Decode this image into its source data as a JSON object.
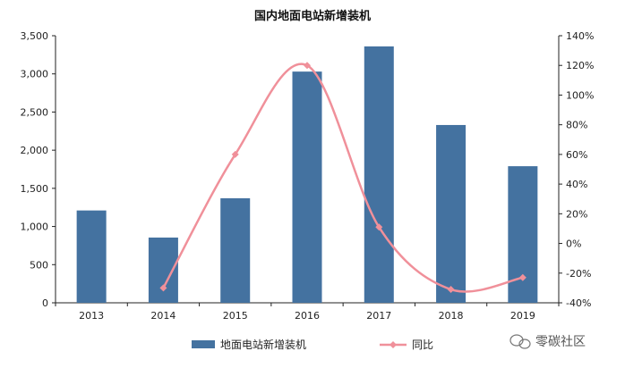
{
  "chart_data": {
    "type": "bar",
    "title": "国内地面电站新增装机",
    "categories": [
      "2013",
      "2014",
      "2015",
      "2016",
      "2017",
      "2018",
      "2019"
    ],
    "series": [
      {
        "name": "地面电站新增装机",
        "type": "bar",
        "axis": "left",
        "color": "#4472a0",
        "values": [
          1210,
          855,
          1370,
          3030,
          3360,
          2330,
          1790
        ]
      },
      {
        "name": "同比",
        "type": "line",
        "axis": "right",
        "color": "#f0909a",
        "values": [
          null,
          -30,
          60,
          120,
          11,
          -31,
          -23
        ]
      }
    ],
    "y_left": {
      "min": 0,
      "max": 3500,
      "ticks": [
        0,
        500,
        1000,
        1500,
        2000,
        2500,
        3000,
        3500
      ],
      "tick_labels": [
        "0",
        "500",
        "1,000",
        "1,500",
        "2,000",
        "2,500",
        "3,000",
        "3,500"
      ]
    },
    "y_right": {
      "min": -40,
      "max": 140,
      "ticks": [
        -40,
        -20,
        0,
        20,
        40,
        60,
        80,
        100,
        120,
        140
      ],
      "tick_labels": [
        "-40%",
        "-20%",
        "0%",
        "20%",
        "40%",
        "60%",
        "80%",
        "100%",
        "120%",
        "140%"
      ]
    },
    "grid": false,
    "legend_position": "bottom"
  },
  "watermark": {
    "text": "零碳社区",
    "icon": "wechat-icon"
  }
}
